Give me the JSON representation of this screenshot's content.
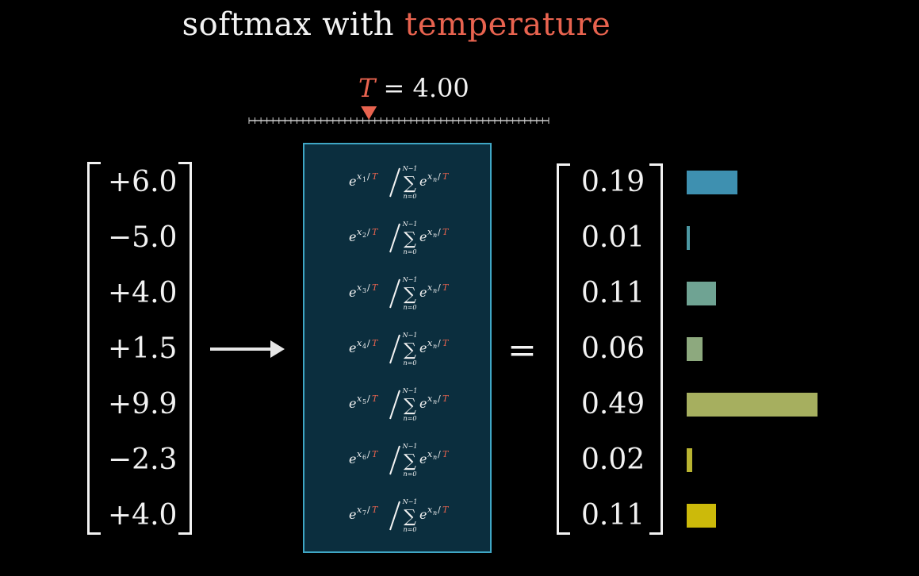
{
  "title": {
    "prefix": "softmax with",
    "accent": "temperature"
  },
  "temperature": {
    "symbol": "T",
    "equals": "= 4.00",
    "value": 4.0
  },
  "slider": {
    "min": 0,
    "max": 10,
    "value": 4.0
  },
  "inputs": [
    "+6.0",
    "−5.0",
    "+4.0",
    "+1.5",
    "+9.9",
    "−2.3",
    "+4.0"
  ],
  "formula": {
    "base": "e",
    "exp_var": "x",
    "over": "/",
    "temp_symbol": "T",
    "sum_symbol": "∑",
    "sum_upper": "N−1",
    "sum_lower": "n=0",
    "sum_index": "n"
  },
  "equals": "=",
  "outputs": [
    "0.19",
    "0.01",
    "0.11",
    "0.06",
    "0.49",
    "0.02",
    "0.11"
  ],
  "output_values": [
    0.19,
    0.01,
    0.11,
    0.06,
    0.49,
    0.02,
    0.11
  ],
  "colors": {
    "accent": "#e8634f",
    "box_fill": "#0b2e3e",
    "box_border": "#3fa6c4",
    "bar_colors": [
      "#3e90b0",
      "#4c98a3",
      "#6fa393",
      "#8da97e",
      "#a6af5f",
      "#b9b431",
      "#ccba0a"
    ]
  }
}
